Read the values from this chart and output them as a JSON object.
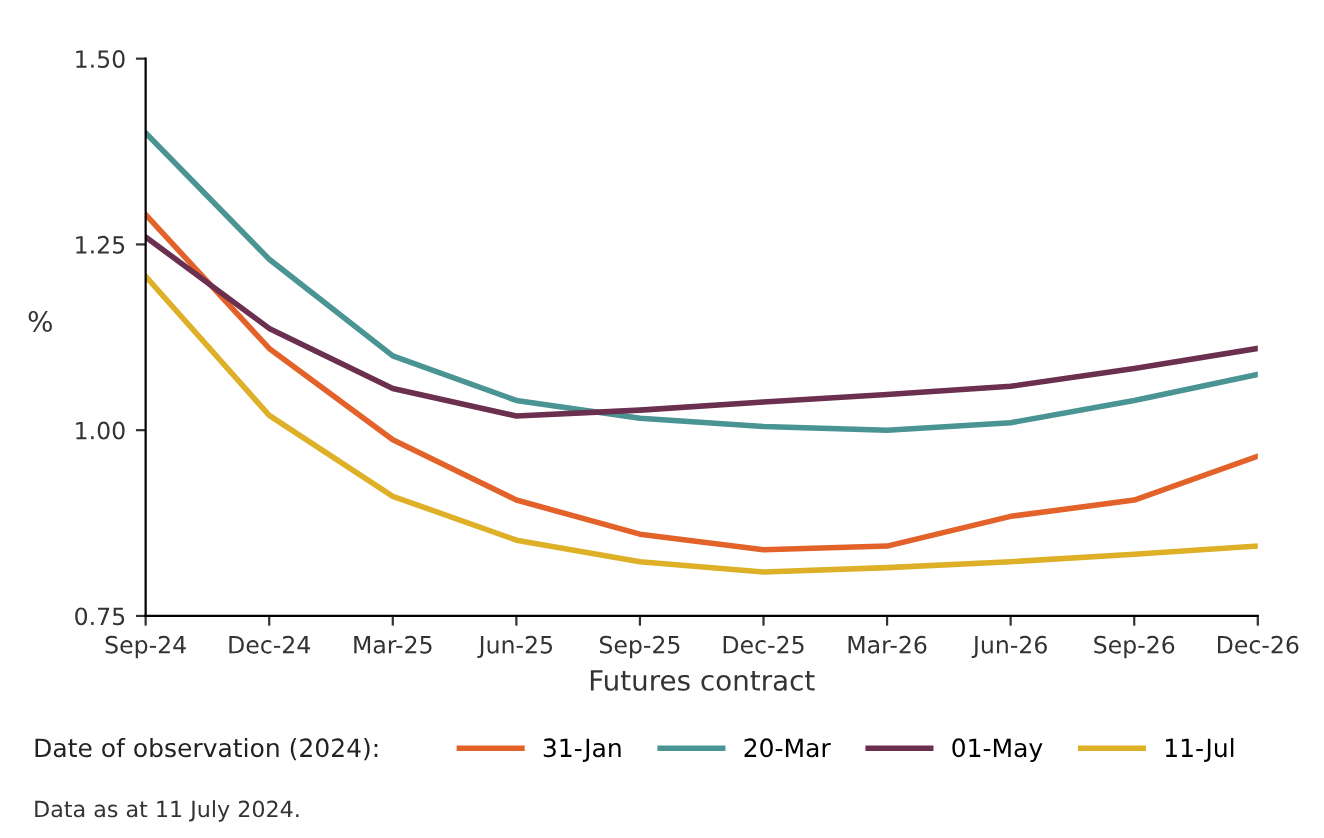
{
  "chart_data": {
    "type": "line",
    "xlabel": "Futures contract",
    "ylabel": "%",
    "legend_title": "Date of observation (2024):",
    "legend": "bottom",
    "grid": false,
    "line_style": "solid",
    "marker": "none",
    "categories": [
      "Sep-24",
      "Dec-24",
      "Mar-25",
      "Jun-25",
      "Sep-25",
      "Dec-25",
      "Mar-26",
      "Jun-26",
      "Sep-26",
      "Dec-26"
    ],
    "ylim": [
      0.75,
      1.5
    ],
    "yticks": [
      {
        "value": 0.75,
        "label": "0.75"
      },
      {
        "value": 1.0,
        "label": "1.00"
      },
      {
        "value": 1.25,
        "label": "1.25"
      },
      {
        "value": 1.5,
        "label": "1.50"
      }
    ],
    "series": [
      {
        "name": "31-Jan",
        "color": "#e2622a",
        "values": [
          1.29,
          1.11,
          0.987,
          0.906,
          0.86,
          0.839,
          0.844,
          0.884,
          0.906,
          0.965
        ]
      },
      {
        "name": "20-Mar",
        "color": "#4a9494",
        "values": [
          1.4,
          1.23,
          1.1,
          1.04,
          1.016,
          1.005,
          1.0,
          1.01,
          1.04,
          1.075
        ]
      },
      {
        "name": "01-May",
        "color": "#6b2f4f",
        "values": [
          1.26,
          1.137,
          1.056,
          1.019,
          1.027,
          1.038,
          1.048,
          1.059,
          1.083,
          1.11
        ]
      },
      {
        "name": "11-Jul",
        "color": "#ddb028",
        "values": [
          1.207,
          1.02,
          0.911,
          0.852,
          0.823,
          0.809,
          0.815,
          0.823,
          0.833,
          0.844
        ]
      }
    ],
    "annotations": [
      "Data as at 11 July 2024."
    ]
  }
}
